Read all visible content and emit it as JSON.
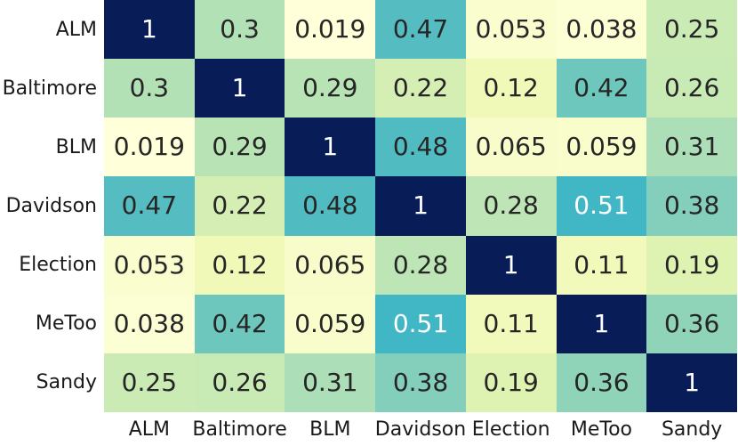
{
  "chart_data": {
    "type": "heatmap",
    "title": "",
    "xlabel": "",
    "ylabel": "",
    "categories": [
      "ALM",
      "Baltimore",
      "BLM",
      "Davidson",
      "Election",
      "MeToo",
      "Sandy"
    ],
    "matrix": [
      [
        1,
        0.3,
        0.019,
        0.47,
        0.053,
        0.038,
        0.25
      ],
      [
        0.3,
        1,
        0.29,
        0.22,
        0.12,
        0.42,
        0.26
      ],
      [
        0.019,
        0.29,
        1,
        0.48,
        0.065,
        0.059,
        0.31
      ],
      [
        0.47,
        0.22,
        0.48,
        1,
        0.28,
        0.51,
        0.38
      ],
      [
        0.053,
        0.12,
        0.065,
        0.28,
        1,
        0.11,
        0.19
      ],
      [
        0.038,
        0.42,
        0.059,
        0.51,
        0.11,
        1,
        0.36
      ],
      [
        0.25,
        0.26,
        0.31,
        0.38,
        0.19,
        0.36,
        1
      ]
    ],
    "annotations_on": true,
    "grid": false,
    "legend": "none",
    "colormap": {
      "name": "YlGnBu",
      "vmin": 0.019,
      "vmax": 1,
      "stops": [
        [
          0.0,
          "#ffffd9"
        ],
        [
          0.125,
          "#edf8b1"
        ],
        [
          0.25,
          "#c7e9b4"
        ],
        [
          0.375,
          "#7fcdbb"
        ],
        [
          0.5,
          "#41b6c4"
        ],
        [
          0.625,
          "#1d91c0"
        ],
        [
          0.75,
          "#225ea8"
        ],
        [
          0.875,
          "#253494"
        ],
        [
          1.0,
          "#081d58"
        ]
      ]
    },
    "annotation_text_dark": "#262626",
    "annotation_text_light": "#ffffff",
    "tick_label_color": "#1a1a1a"
  }
}
